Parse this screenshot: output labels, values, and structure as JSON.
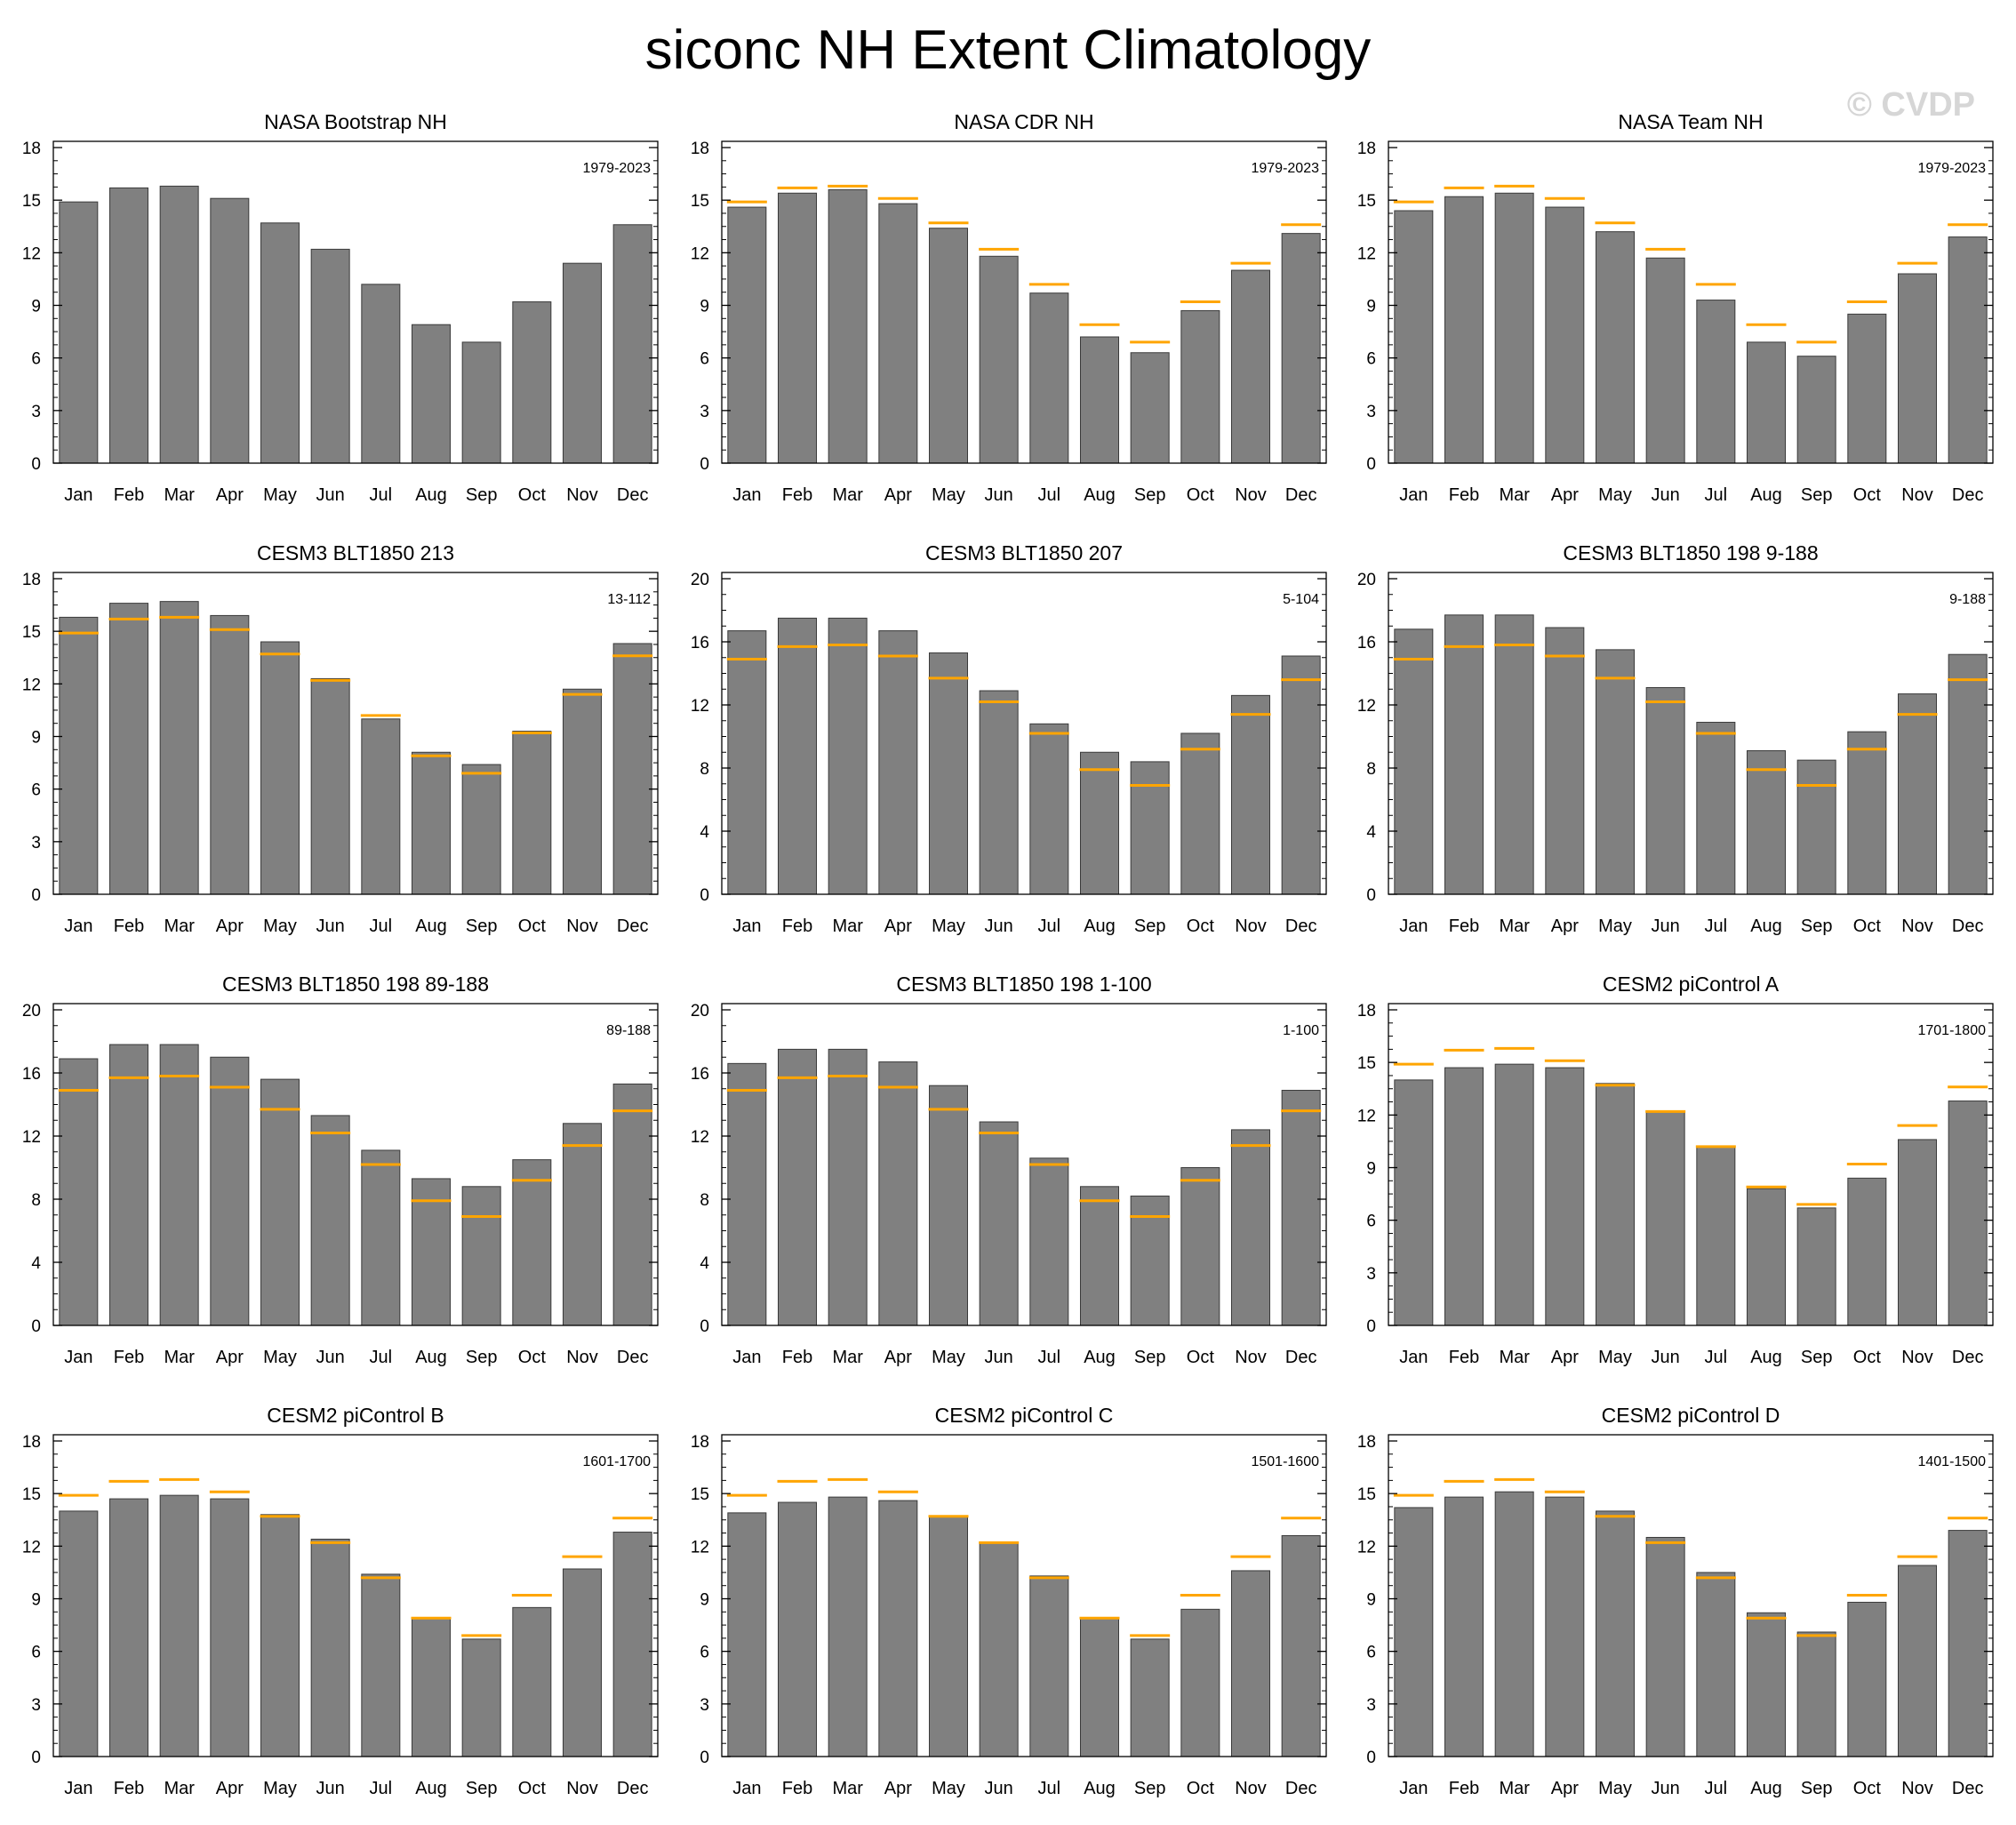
{
  "figure": {
    "title": "siconc NH Extent Climatology",
    "watermark": "© CVDP",
    "bar_color": "#808080",
    "ref_color": "#ffa500",
    "highlight_title_color": "#ffa500"
  },
  "chart_data": [
    {
      "type": "bar",
      "title": "NASA Bootstrap NH",
      "period": "1979-2023",
      "reference": true,
      "ylim": [
        0,
        18
      ],
      "yticks": [
        "0",
        "3",
        "6",
        "9",
        "12",
        "15",
        "18"
      ],
      "categories": [
        "Jan",
        "Feb",
        "Mar",
        "Apr",
        "May",
        "Jun",
        "Jul",
        "Aug",
        "Sep",
        "Oct",
        "Nov",
        "Dec"
      ],
      "values": [
        14.9,
        15.7,
        15.8,
        15.1,
        13.7,
        12.2,
        10.2,
        7.9,
        6.9,
        9.2,
        11.4,
        13.6
      ],
      "ref_values": null
    },
    {
      "type": "bar",
      "title": "NASA CDR NH",
      "period": "1979-2023",
      "reference": false,
      "ylim": [
        0,
        18
      ],
      "yticks": [
        "0",
        "3",
        "6",
        "9",
        "12",
        "15",
        "18"
      ],
      "categories": [
        "Jan",
        "Feb",
        "Mar",
        "Apr",
        "May",
        "Jun",
        "Jul",
        "Aug",
        "Sep",
        "Oct",
        "Nov",
        "Dec"
      ],
      "values": [
        14.6,
        15.4,
        15.6,
        14.8,
        13.4,
        11.8,
        9.7,
        7.2,
        6.3,
        8.7,
        11.0,
        13.1
      ],
      "ref_values": [
        14.9,
        15.7,
        15.8,
        15.1,
        13.7,
        12.2,
        10.2,
        7.9,
        6.9,
        9.2,
        11.4,
        13.6
      ]
    },
    {
      "type": "bar",
      "title": "NASA Team NH",
      "period": "1979-2023",
      "reference": false,
      "ylim": [
        0,
        18
      ],
      "yticks": [
        "0",
        "3",
        "6",
        "9",
        "12",
        "15",
        "18"
      ],
      "categories": [
        "Jan",
        "Feb",
        "Mar",
        "Apr",
        "May",
        "Jun",
        "Jul",
        "Aug",
        "Sep",
        "Oct",
        "Nov",
        "Dec"
      ],
      "values": [
        14.4,
        15.2,
        15.4,
        14.6,
        13.2,
        11.7,
        9.3,
        6.9,
        6.1,
        8.5,
        10.8,
        12.9
      ],
      "ref_values": [
        14.9,
        15.7,
        15.8,
        15.1,
        13.7,
        12.2,
        10.2,
        7.9,
        6.9,
        9.2,
        11.4,
        13.6
      ]
    },
    {
      "type": "bar",
      "title": "CESM3 BLT1850 213",
      "period": "13-112",
      "reference": false,
      "ylim": [
        0,
        18
      ],
      "yticks": [
        "0",
        "3",
        "6",
        "9",
        "12",
        "15",
        "18"
      ],
      "categories": [
        "Jan",
        "Feb",
        "Mar",
        "Apr",
        "May",
        "Jun",
        "Jul",
        "Aug",
        "Sep",
        "Oct",
        "Nov",
        "Dec"
      ],
      "values": [
        15.8,
        16.6,
        16.7,
        15.9,
        14.4,
        12.3,
        10.0,
        8.1,
        7.4,
        9.3,
        11.7,
        14.3
      ],
      "ref_values": [
        14.9,
        15.7,
        15.8,
        15.1,
        13.7,
        12.2,
        10.2,
        7.9,
        6.9,
        9.2,
        11.4,
        13.6
      ]
    },
    {
      "type": "bar",
      "title": "CESM3 BLT1850 207",
      "period": "5-104",
      "reference": false,
      "ylim": [
        0,
        20
      ],
      "yticks": [
        "0",
        "4",
        "8",
        "12",
        "16",
        "20"
      ],
      "categories": [
        "Jan",
        "Feb",
        "Mar",
        "Apr",
        "May",
        "Jun",
        "Jul",
        "Aug",
        "Sep",
        "Oct",
        "Nov",
        "Dec"
      ],
      "values": [
        16.7,
        17.5,
        17.5,
        16.7,
        15.3,
        12.9,
        10.8,
        9.0,
        8.4,
        10.2,
        12.6,
        15.1
      ],
      "ref_values": [
        14.9,
        15.7,
        15.8,
        15.1,
        13.7,
        12.2,
        10.2,
        7.9,
        6.9,
        9.2,
        11.4,
        13.6
      ]
    },
    {
      "type": "bar",
      "title": "CESM3 BLT1850 198 9-188",
      "period": "9-188",
      "reference": false,
      "ylim": [
        0,
        20
      ],
      "yticks": [
        "0",
        "4",
        "8",
        "12",
        "16",
        "20"
      ],
      "categories": [
        "Jan",
        "Feb",
        "Mar",
        "Apr",
        "May",
        "Jun",
        "Jul",
        "Aug",
        "Sep",
        "Oct",
        "Nov",
        "Dec"
      ],
      "values": [
        16.8,
        17.7,
        17.7,
        16.9,
        15.5,
        13.1,
        10.9,
        9.1,
        8.5,
        10.3,
        12.7,
        15.2
      ],
      "ref_values": [
        14.9,
        15.7,
        15.8,
        15.1,
        13.7,
        12.2,
        10.2,
        7.9,
        6.9,
        9.2,
        11.4,
        13.6
      ]
    },
    {
      "type": "bar",
      "title": "CESM3 BLT1850 198 89-188",
      "period": "89-188",
      "reference": false,
      "ylim": [
        0,
        20
      ],
      "yticks": [
        "0",
        "4",
        "8",
        "12",
        "16",
        "20"
      ],
      "categories": [
        "Jan",
        "Feb",
        "Mar",
        "Apr",
        "May",
        "Jun",
        "Jul",
        "Aug",
        "Sep",
        "Oct",
        "Nov",
        "Dec"
      ],
      "values": [
        16.9,
        17.8,
        17.8,
        17.0,
        15.6,
        13.3,
        11.1,
        9.3,
        8.8,
        10.5,
        12.8,
        15.3
      ],
      "ref_values": [
        14.9,
        15.7,
        15.8,
        15.1,
        13.7,
        12.2,
        10.2,
        7.9,
        6.9,
        9.2,
        11.4,
        13.6
      ]
    },
    {
      "type": "bar",
      "title": "CESM3 BLT1850 198 1-100",
      "period": "1-100",
      "reference": false,
      "ylim": [
        0,
        20
      ],
      "yticks": [
        "0",
        "4",
        "8",
        "12",
        "16",
        "20"
      ],
      "categories": [
        "Jan",
        "Feb",
        "Mar",
        "Apr",
        "May",
        "Jun",
        "Jul",
        "Aug",
        "Sep",
        "Oct",
        "Nov",
        "Dec"
      ],
      "values": [
        16.6,
        17.5,
        17.5,
        16.7,
        15.2,
        12.9,
        10.6,
        8.8,
        8.2,
        10.0,
        12.4,
        14.9
      ],
      "ref_values": [
        14.9,
        15.7,
        15.8,
        15.1,
        13.7,
        12.2,
        10.2,
        7.9,
        6.9,
        9.2,
        11.4,
        13.6
      ]
    },
    {
      "type": "bar",
      "title": "CESM2 piControl A",
      "period": "1701-1800",
      "reference": false,
      "ylim": [
        0,
        18
      ],
      "yticks": [
        "0",
        "3",
        "6",
        "9",
        "12",
        "15",
        "18"
      ],
      "categories": [
        "Jan",
        "Feb",
        "Mar",
        "Apr",
        "May",
        "Jun",
        "Jul",
        "Aug",
        "Sep",
        "Oct",
        "Nov",
        "Dec"
      ],
      "values": [
        14.0,
        14.7,
        14.9,
        14.7,
        13.8,
        12.2,
        10.2,
        7.8,
        6.7,
        8.4,
        10.6,
        12.8
      ],
      "ref_values": [
        14.9,
        15.7,
        15.8,
        15.1,
        13.7,
        12.2,
        10.2,
        7.9,
        6.9,
        9.2,
        11.4,
        13.6
      ]
    },
    {
      "type": "bar",
      "title": "CESM2 piControl B",
      "period": "1601-1700",
      "reference": false,
      "ylim": [
        0,
        18
      ],
      "yticks": [
        "0",
        "3",
        "6",
        "9",
        "12",
        "15",
        "18"
      ],
      "categories": [
        "Jan",
        "Feb",
        "Mar",
        "Apr",
        "May",
        "Jun",
        "Jul",
        "Aug",
        "Sep",
        "Oct",
        "Nov",
        "Dec"
      ],
      "values": [
        14.0,
        14.7,
        14.9,
        14.7,
        13.8,
        12.4,
        10.4,
        7.9,
        6.7,
        8.5,
        10.7,
        12.8
      ],
      "ref_values": [
        14.9,
        15.7,
        15.8,
        15.1,
        13.7,
        12.2,
        10.2,
        7.9,
        6.9,
        9.2,
        11.4,
        13.6
      ]
    },
    {
      "type": "bar",
      "title": "CESM2 piControl C",
      "period": "1501-1600",
      "reference": false,
      "ylim": [
        0,
        18
      ],
      "yticks": [
        "0",
        "3",
        "6",
        "9",
        "12",
        "15",
        "18"
      ],
      "categories": [
        "Jan",
        "Feb",
        "Mar",
        "Apr",
        "May",
        "Jun",
        "Jul",
        "Aug",
        "Sep",
        "Oct",
        "Nov",
        "Dec"
      ],
      "values": [
        13.9,
        14.5,
        14.8,
        14.6,
        13.7,
        12.2,
        10.3,
        7.9,
        6.7,
        8.4,
        10.6,
        12.6
      ],
      "ref_values": [
        14.9,
        15.7,
        15.8,
        15.1,
        13.7,
        12.2,
        10.2,
        7.9,
        6.9,
        9.2,
        11.4,
        13.6
      ]
    },
    {
      "type": "bar",
      "title": "CESM2 piControl D",
      "period": "1401-1500",
      "reference": false,
      "ylim": [
        0,
        18
      ],
      "yticks": [
        "0",
        "3",
        "6",
        "9",
        "12",
        "15",
        "18"
      ],
      "categories": [
        "Jan",
        "Feb",
        "Mar",
        "Apr",
        "May",
        "Jun",
        "Jul",
        "Aug",
        "Sep",
        "Oct",
        "Nov",
        "Dec"
      ],
      "values": [
        14.2,
        14.8,
        15.1,
        14.8,
        14.0,
        12.5,
        10.5,
        8.2,
        7.1,
        8.8,
        10.9,
        12.9
      ],
      "ref_values": [
        14.9,
        15.7,
        15.8,
        15.1,
        13.7,
        12.2,
        10.2,
        7.9,
        6.9,
        9.2,
        11.4,
        13.6
      ]
    }
  ]
}
